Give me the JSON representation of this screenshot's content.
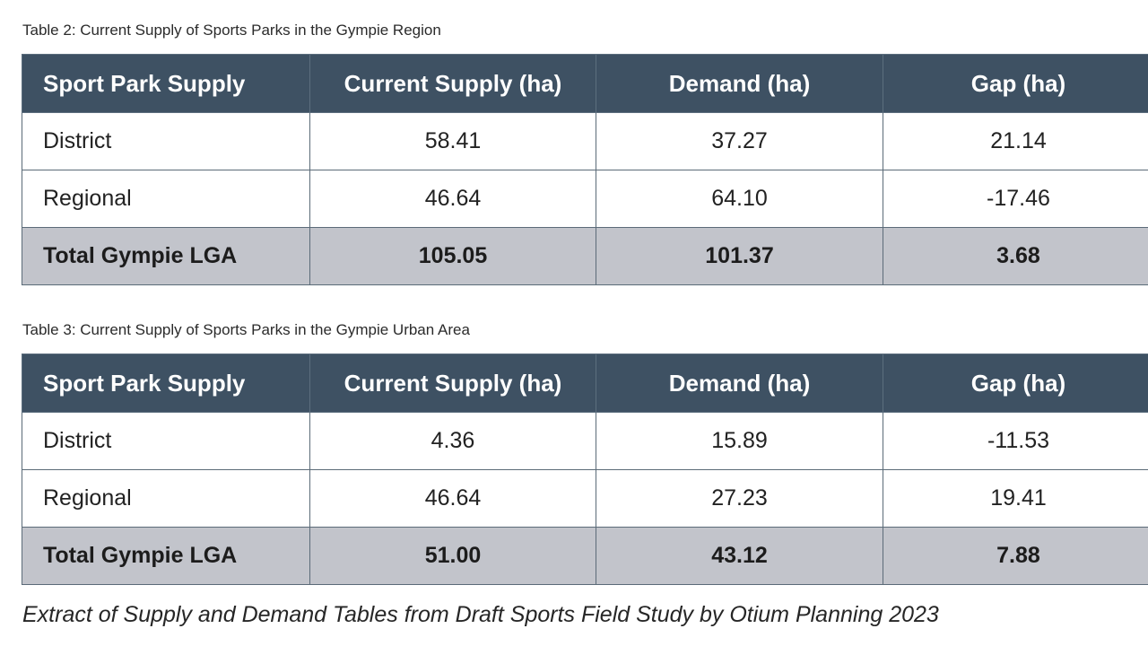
{
  "tables": [
    {
      "caption": "Table 2: Current Supply of Sports Parks in the Gympie Region",
      "headers": [
        "Sport Park Supply",
        "Current Supply (ha)",
        "Demand (ha)",
        "Gap (ha)"
      ],
      "rows": [
        [
          "District",
          "58.41",
          "37.27",
          "21.14"
        ],
        [
          "Regional",
          "46.64",
          "64.10",
          "-17.46"
        ]
      ],
      "total": [
        "Total Gympie LGA",
        "105.05",
        "101.37",
        "3.68"
      ]
    },
    {
      "caption": "Table 3: Current Supply of Sports Parks in the Gympie Urban Area",
      "headers": [
        "Sport Park Supply",
        "Current Supply (ha)",
        "Demand (ha)",
        "Gap (ha)"
      ],
      "rows": [
        [
          "District",
          "4.36",
          "15.89",
          "-11.53"
        ],
        [
          "Regional",
          "46.64",
          "27.23",
          "19.41"
        ]
      ],
      "total": [
        "Total Gympie LGA",
        "51.00",
        "43.12",
        "7.88"
      ]
    }
  ],
  "source_note": "Extract of Supply and Demand Tables from Draft Sports Field Study by Otium Planning 2023",
  "colors": {
    "header_bg": "#3e5163",
    "total_bg": "#c2c4cb",
    "negative_text": "#c0302e"
  }
}
